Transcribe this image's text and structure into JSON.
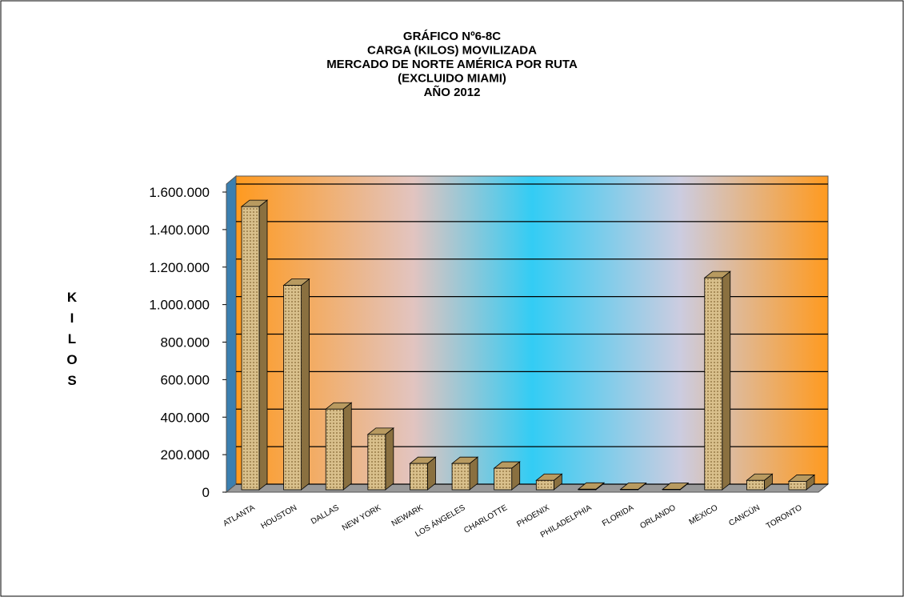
{
  "chart_data": {
    "type": "bar3d",
    "title": [
      "GRÁFICO Nº6-8C",
      "CARGA (KILOS) MOVILIZADA",
      "MERCADO DE NORTE AMÉRICA POR RUTA",
      "(EXCLUIDO MIAMI)",
      "AÑO 2012"
    ],
    "y_label": "KILOS",
    "categories": [
      "ATLANTA",
      "HOUSTON",
      "DALLAS",
      "NEW YORK",
      "NEWARK",
      "LOS ÁNGELES",
      "CHARLOTTE",
      "PHOENIX",
      "PHILADELPHIA",
      "FLORIDA",
      "ORLANDO",
      "MÉXICO",
      "CANCÚN",
      "TORONTO"
    ],
    "values": [
      1510000,
      1090000,
      430000,
      295000,
      140000,
      140000,
      115000,
      50000,
      3000,
      2000,
      2000,
      1130000,
      50000,
      45000
    ],
    "color": "#d9c08c",
    "ylim": [
      0,
      1600000
    ],
    "yticks": [
      0,
      {
        "value": 200000,
        "label": "200.000"
      },
      {
        "value": 400000,
        "label": "400.000"
      },
      {
        "value": 600000,
        "label": "600.000"
      },
      {
        "value": 800000,
        "label": "800.000"
      },
      {
        "value": 1000000,
        "label": "1.000.000"
      },
      {
        "value": 1200000,
        "label": "1.200.000"
      },
      {
        "value": 1400000,
        "label": "1.400.000"
      },
      {
        "value": 1600000,
        "label": "1.600.000"
      }
    ],
    "grid": true
  }
}
